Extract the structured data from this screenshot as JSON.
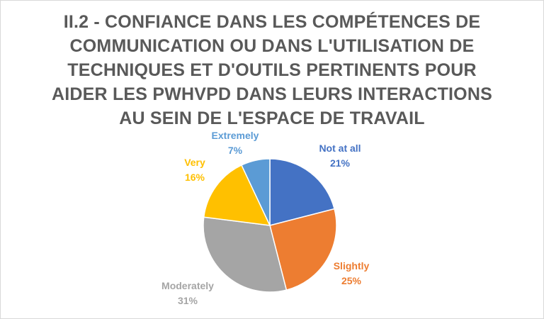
{
  "chart_data": {
    "type": "pie",
    "title_lines": [
      "II.2 - CONFIANCE DANS LES COMPÉTENCES DE",
      "COMMUNICATION OU DANS L'UTILISATION DE",
      "TECHNIQUES ET D'OUTILS PERTINENTS POUR",
      "AIDER LES PWHVPD DANS LEURS INTERACTIONS",
      "AU SEIN DE L'ESPACE DE TRAVAIL"
    ],
    "slices": [
      {
        "label": "Not at all",
        "value": 21,
        "value_label": "21%",
        "color": "#4472C4"
      },
      {
        "label": "Slightly",
        "value": 25,
        "value_label": "25%",
        "color": "#ED7D31"
      },
      {
        "label": "Moderately",
        "value": 31,
        "value_label": "31%",
        "color": "#A5A5A5"
      },
      {
        "label": "Very",
        "value": 16,
        "value_label": "16%",
        "color": "#FFC000"
      },
      {
        "label": "Extremely",
        "value": 7,
        "value_label": "7%",
        "color": "#5B9BD5"
      }
    ],
    "start_angle_deg": 0,
    "direction": "clockwise",
    "legend": "none",
    "data_labels": "outside"
  }
}
